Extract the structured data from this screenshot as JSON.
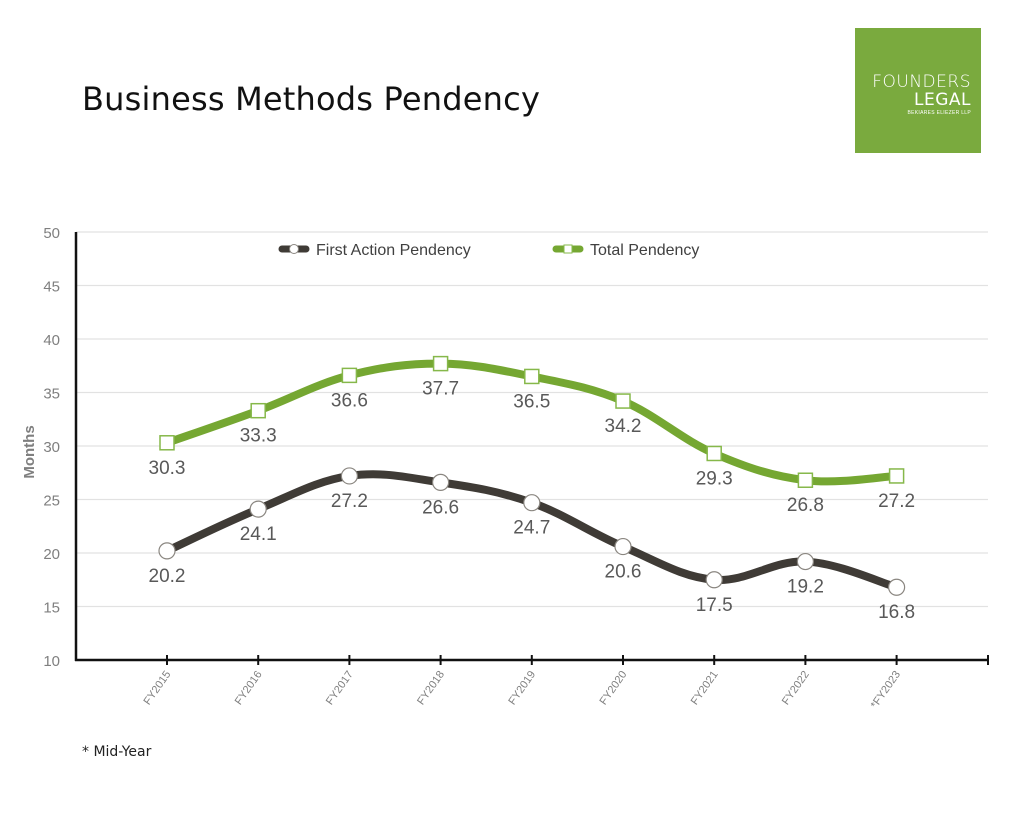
{
  "header": {
    "title": "Business Methods Pendency"
  },
  "logo": {
    "line1": "FOUNDERS",
    "line2": "LEGAL",
    "line3": "BEKIARES ELIEZER LLP",
    "color": "#7aaa3e"
  },
  "footnote": "* Mid-Year",
  "chart_data": {
    "type": "line",
    "title": "",
    "xlabel": "",
    "ylabel": "Months",
    "ylim": [
      10,
      50
    ],
    "yticks": [
      10,
      15,
      20,
      25,
      30,
      35,
      40,
      45,
      50
    ],
    "grid": true,
    "legend_position": "top-center",
    "categories": [
      "FY2015",
      "FY2016",
      "FY2017",
      "FY2018",
      "FY2019",
      "FY2020",
      "FY2021",
      "FY2022",
      "*FY2023"
    ],
    "series": [
      {
        "name": "First Action Pendency",
        "color": "#3f3b36",
        "marker": "circle",
        "values": [
          20.2,
          24.1,
          27.2,
          26.6,
          24.7,
          20.6,
          17.5,
          19.2,
          16.8
        ],
        "labels": [
          "20.2",
          "24.1",
          "27.2",
          "26.6",
          "24.7",
          "20.6",
          "17.5",
          "19.2",
          "16.8"
        ]
      },
      {
        "name": "Total Pendency",
        "color": "#75a732",
        "marker": "square",
        "values": [
          30.3,
          33.3,
          36.6,
          37.7,
          36.5,
          34.2,
          29.3,
          26.8,
          27.2
        ],
        "labels": [
          "30.3",
          "33.3",
          "36.6",
          "37.7",
          "36.5",
          "34.2",
          "29.3",
          "26.8",
          "27.2"
        ]
      }
    ]
  }
}
